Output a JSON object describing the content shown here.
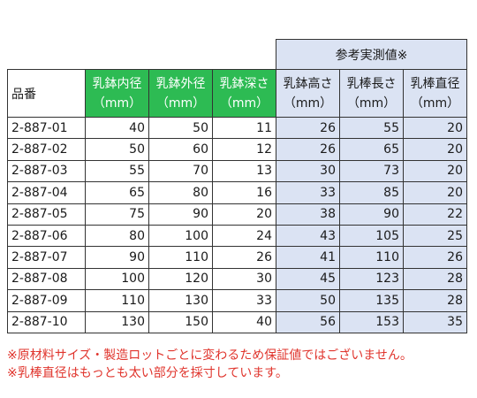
{
  "header": {
    "ref_group": "参考実測値※",
    "item_no": "品番",
    "columns": [
      {
        "label": "乳鉢内径",
        "unit": "（mm）"
      },
      {
        "label": "乳鉢外径",
        "unit": "（mm）"
      },
      {
        "label": "乳鉢深さ",
        "unit": "（mm）"
      },
      {
        "label": "乳鉢高さ",
        "unit": "（mm）"
      },
      {
        "label": "乳棒長さ",
        "unit": "（mm）"
      },
      {
        "label": "乳棒直径",
        "unit": "（mm）"
      }
    ]
  },
  "rows": [
    {
      "id": "2-887-01",
      "inner": "40",
      "outer": "50",
      "depth": "11",
      "height": "26",
      "pestle_len": "55",
      "pestle_dia": "20"
    },
    {
      "id": "2-887-02",
      "inner": "50",
      "outer": "60",
      "depth": "12",
      "height": "26",
      "pestle_len": "65",
      "pestle_dia": "20"
    },
    {
      "id": "2-887-03",
      "inner": "55",
      "outer": "70",
      "depth": "13",
      "height": "30",
      "pestle_len": "73",
      "pestle_dia": "20"
    },
    {
      "id": "2-887-04",
      "inner": "65",
      "outer": "80",
      "depth": "16",
      "height": "33",
      "pestle_len": "85",
      "pestle_dia": "20"
    },
    {
      "id": "2-887-05",
      "inner": "75",
      "outer": "90",
      "depth": "20",
      "height": "38",
      "pestle_len": "90",
      "pestle_dia": "22"
    },
    {
      "id": "2-887-06",
      "inner": "80",
      "outer": "100",
      "depth": "24",
      "height": "43",
      "pestle_len": "105",
      "pestle_dia": "25"
    },
    {
      "id": "2-887-07",
      "inner": "90",
      "outer": "110",
      "depth": "26",
      "height": "41",
      "pestle_len": "110",
      "pestle_dia": "26"
    },
    {
      "id": "2-887-08",
      "inner": "100",
      "outer": "120",
      "depth": "30",
      "height": "45",
      "pestle_len": "123",
      "pestle_dia": "28"
    },
    {
      "id": "2-887-09",
      "inner": "110",
      "outer": "130",
      "depth": "33",
      "height": "50",
      "pestle_len": "135",
      "pestle_dia": "28"
    },
    {
      "id": "2-887-10",
      "inner": "130",
      "outer": "150",
      "depth": "40",
      "height": "56",
      "pestle_len": "153",
      "pestle_dia": "35"
    }
  ],
  "notes": [
    "※原材料サイズ・製造ロットごとに変わるため保証値ではございません。",
    "※乳棒直径はもっとも太い部分を採寸しています。"
  ]
}
